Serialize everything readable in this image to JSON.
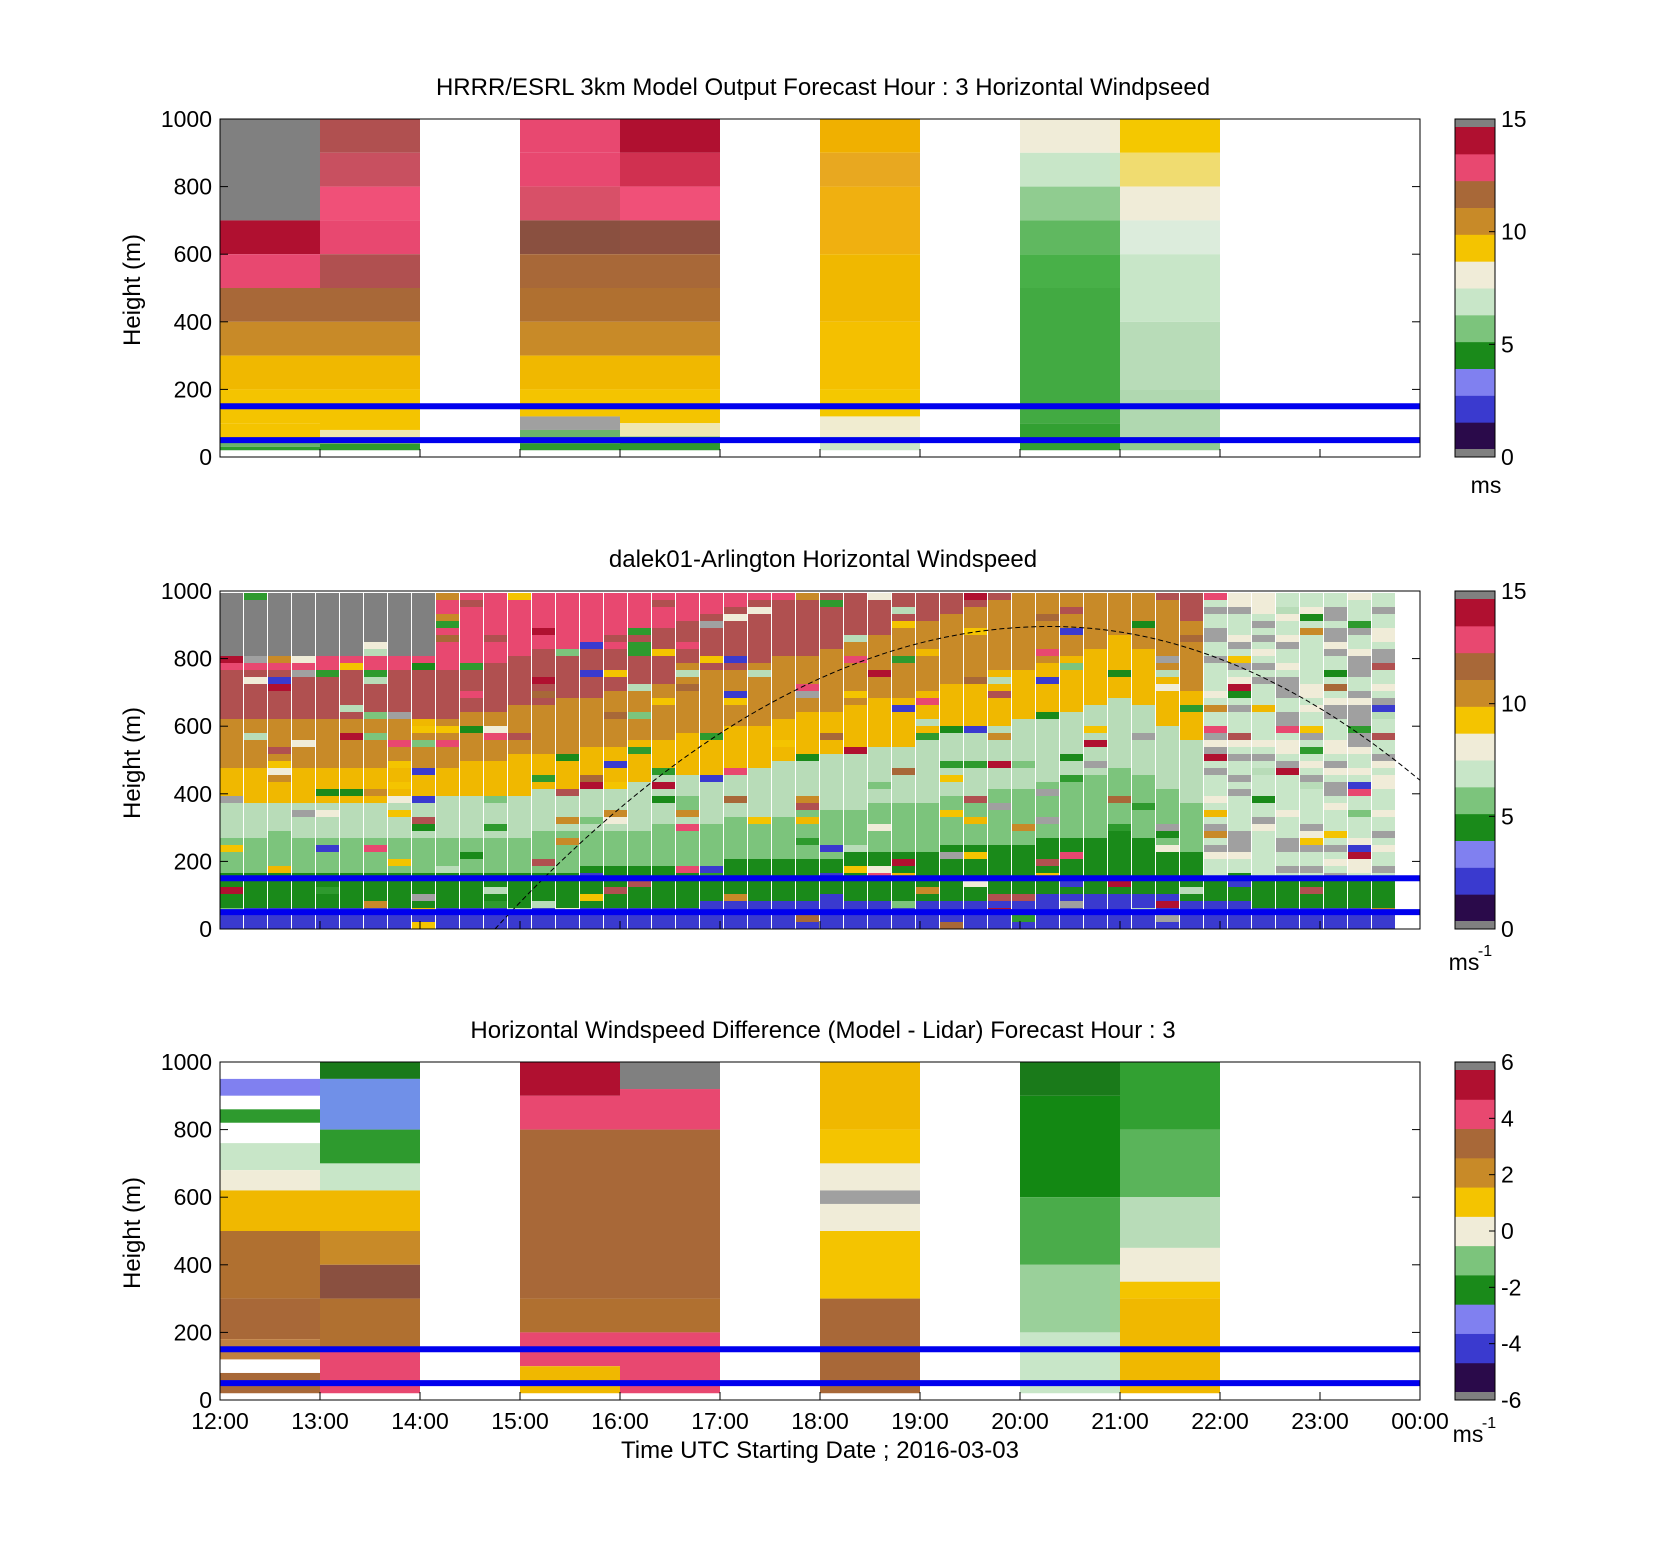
{
  "figure": {
    "xlabel": "Time UTC  Starting Date ; 2016-03-03",
    "x_ticks": [
      "12:00",
      "13:00",
      "14:00",
      "15:00",
      "16:00",
      "17:00",
      "18:00",
      "19:00",
      "20:00",
      "21:00",
      "22:00",
      "23:00",
      "00:00"
    ]
  },
  "chart_data": [
    {
      "type": "heatmap",
      "title": "HRRR/ESRL 3km Model Output   Forecast Hour : 3 Horizontal Windpseed",
      "ylabel": "Height (m)",
      "ylim": [
        0,
        1000
      ],
      "y_ticks": [
        "0",
        "200",
        "400",
        "600",
        "800",
        "1000"
      ],
      "colorbar": {
        "min": 0,
        "max": 15,
        "ticks": [
          "0",
          "5",
          "10",
          "15"
        ],
        "unit": "ms",
        "unit_sup": ""
      },
      "reference_lines_m": [
        150,
        50
      ],
      "columns": [
        {
          "time": "12:00-13:00",
          "segments": [
            [
              750,
              1000,
              "#808080"
            ],
            [
              700,
              750,
              "#808080"
            ],
            [
              600,
              700,
              "#b01030"
            ],
            [
              500,
              600,
              "#e84870"
            ],
            [
              400,
              500,
              "#a86838"
            ],
            [
              300,
              400,
              "#c88a28"
            ],
            [
              200,
              300,
              "#f0b800"
            ],
            [
              100,
              200,
              "#f4c400"
            ],
            [
              50,
              100,
              "#f4c400"
            ],
            [
              30,
              50,
              "#6ab36a"
            ],
            [
              20,
              30,
              "#2e9a2e"
            ]
          ]
        },
        {
          "time": "13:00-14:00",
          "segments": [
            [
              900,
              1000,
              "#b05050"
            ],
            [
              800,
              900,
              "#c85060"
            ],
            [
              700,
              800,
              "#f05078"
            ],
            [
              600,
              700,
              "#e84870"
            ],
            [
              500,
              600,
              "#b05050"
            ],
            [
              400,
              500,
              "#a86838"
            ],
            [
              300,
              400,
              "#c88a28"
            ],
            [
              200,
              300,
              "#f0b800"
            ],
            [
              80,
              200,
              "#f4c400"
            ],
            [
              40,
              80,
              "#efe6b0"
            ],
            [
              20,
              40,
              "#2e9a2e"
            ]
          ]
        },
        {
          "time": "15:00-16:00",
          "segments": [
            [
              900,
              1000,
              "#e84870"
            ],
            [
              800,
              900,
              "#e84870"
            ],
            [
              700,
              800,
              "#d85068"
            ],
            [
              600,
              700,
              "#8a5040"
            ],
            [
              500,
              600,
              "#a86838"
            ],
            [
              400,
              500,
              "#b07030"
            ],
            [
              300,
              400,
              "#c88a28"
            ],
            [
              200,
              300,
              "#f0b800"
            ],
            [
              120,
              200,
              "#f4c400"
            ],
            [
              80,
              120,
              "#a0a0a0"
            ],
            [
              40,
              80,
              "#6ab36a"
            ],
            [
              20,
              40,
              "#2e9a2e"
            ]
          ]
        },
        {
          "time": "16:00-17:00",
          "segments": [
            [
              900,
              1000,
              "#b01030"
            ],
            [
              800,
              900,
              "#d03050"
            ],
            [
              700,
              800,
              "#f05078"
            ],
            [
              600,
              700,
              "#905040"
            ],
            [
              500,
              600,
              "#a86838"
            ],
            [
              400,
              500,
              "#b07030"
            ],
            [
              300,
              400,
              "#c88a28"
            ],
            [
              200,
              300,
              "#f0b800"
            ],
            [
              100,
              200,
              "#f4c400"
            ],
            [
              60,
              100,
              "#efe6b0"
            ],
            [
              20,
              60,
              "#2e9a2e"
            ]
          ]
        },
        {
          "time": "18:00-19:00",
          "segments": [
            [
              900,
              1000,
              "#f0b000"
            ],
            [
              800,
              900,
              "#e8a820"
            ],
            [
              600,
              800,
              "#f0b010"
            ],
            [
              400,
              600,
              "#f0b800"
            ],
            [
              200,
              400,
              "#f4c000"
            ],
            [
              120,
              200,
              "#f4c800"
            ],
            [
              60,
              120,
              "#f0ecd0"
            ],
            [
              20,
              60,
              "#c8e6c8"
            ]
          ]
        },
        {
          "time": "20:00-21:00",
          "segments": [
            [
              900,
              1000,
              "#f0ecd8"
            ],
            [
              800,
              900,
              "#c8e6c8"
            ],
            [
              700,
              800,
              "#90cc90"
            ],
            [
              600,
              700,
              "#60b860"
            ],
            [
              500,
              600,
              "#48b048"
            ],
            [
              100,
              500,
              "#42aa42"
            ],
            [
              20,
              100,
              "#32a032"
            ]
          ]
        },
        {
          "time": "21:00-22:00",
          "segments": [
            [
              900,
              1000,
              "#f4c800"
            ],
            [
              800,
              900,
              "#f0dc70"
            ],
            [
              700,
              800,
              "#f0ecd8"
            ],
            [
              600,
              700,
              "#dcecdc"
            ],
            [
              400,
              600,
              "#c8e6c8"
            ],
            [
              200,
              400,
              "#b8dcb8"
            ],
            [
              60,
              200,
              "#b0d8b0"
            ],
            [
              20,
              60,
              "#90cc90"
            ]
          ]
        }
      ]
    },
    {
      "type": "heatmap",
      "title": "dalek01-Arlington  Horizontal Windspeed",
      "ylabel": "Height (m)",
      "ylim": [
        0,
        1000
      ],
      "y_ticks": [
        "0",
        "200",
        "400",
        "600",
        "800",
        "1000"
      ],
      "colorbar": {
        "min": 0,
        "max": 15,
        "ticks": [
          "0",
          "5",
          "10",
          "15"
        ],
        "unit": "ms",
        "unit_sup": "-1"
      },
      "reference_lines_m": [
        150,
        50
      ],
      "boundary_layer_curve": {
        "start_hour": 14.75,
        "peak_hour": 20.3,
        "peak_height_m": 895,
        "end_height_m": 440
      },
      "profile_bands": [
        [
          0,
          60,
          "#3a3acf"
        ],
        [
          60,
          160,
          "#1a8a1a"
        ],
        [
          160,
          260,
          "#7cc47c"
        ],
        [
          260,
          380,
          "#b8dcb8"
        ],
        [
          380,
          480,
          "#f0b800"
        ],
        [
          480,
          620,
          "#c88a28"
        ],
        [
          620,
          760,
          "#b05050"
        ],
        [
          760,
          1000,
          "#e84870"
        ]
      ]
    },
    {
      "type": "heatmap",
      "title": "Horizontal Windspeed Difference (Model - Lidar) Forecast Hour : 3",
      "ylabel": "Height (m)",
      "ylim": [
        0,
        1000
      ],
      "y_ticks": [
        "0",
        "200",
        "400",
        "600",
        "800",
        "1000"
      ],
      "colorbar": {
        "min": -6,
        "max": 6,
        "ticks": [
          "-6",
          "-4",
          "-2",
          "0",
          "2",
          "4",
          "6"
        ],
        "unit": "ms",
        "unit_sup": "-1"
      },
      "reference_lines_m": [
        150,
        50
      ],
      "columns": [
        {
          "time": "12:00-13:00",
          "segments": [
            [
              950,
              1000,
              "#ffffff"
            ],
            [
              900,
              950,
              "#8080f0"
            ],
            [
              860,
              900,
              "#ffffff"
            ],
            [
              820,
              860,
              "#2e9a2e"
            ],
            [
              760,
              820,
              "#ffffff"
            ],
            [
              680,
              760,
              "#c8e6c8"
            ],
            [
              620,
              680,
              "#f0ecd8"
            ],
            [
              500,
              620,
              "#f0b800"
            ],
            [
              300,
              500,
              "#b07030"
            ],
            [
              180,
              300,
              "#a86838"
            ],
            [
              120,
              180,
              "#c08040"
            ],
            [
              80,
              120,
              "#ffffff"
            ],
            [
              20,
              80,
              "#a86838"
            ]
          ]
        },
        {
          "time": "13:00-14:00",
          "segments": [
            [
              950,
              1000,
              "#1a7a1a"
            ],
            [
              800,
              950,
              "#7090e8"
            ],
            [
              700,
              800,
              "#2e9a2e"
            ],
            [
              620,
              700,
              "#c8e6c8"
            ],
            [
              500,
              620,
              "#f0b800"
            ],
            [
              400,
              500,
              "#c88a28"
            ],
            [
              300,
              400,
              "#8a5040"
            ],
            [
              150,
              300,
              "#b07030"
            ],
            [
              20,
              150,
              "#e84870"
            ]
          ]
        },
        {
          "time": "15:00-16:00",
          "segments": [
            [
              900,
              1000,
              "#b01030"
            ],
            [
              800,
              900,
              "#e84870"
            ],
            [
              300,
              800,
              "#a86838"
            ],
            [
              200,
              300,
              "#b07030"
            ],
            [
              100,
              200,
              "#e84870"
            ],
            [
              20,
              100,
              "#f0b800"
            ]
          ]
        },
        {
          "time": "16:00-17:00",
          "segments": [
            [
              920,
              1000,
              "#808080"
            ],
            [
              800,
              920,
              "#e84870"
            ],
            [
              300,
              800,
              "#a86838"
            ],
            [
              200,
              300,
              "#b07030"
            ],
            [
              20,
              200,
              "#e84870"
            ]
          ]
        },
        {
          "time": "18:00-19:00",
          "segments": [
            [
              800,
              1000,
              "#f0b800"
            ],
            [
              700,
              800,
              "#f4c400"
            ],
            [
              620,
              700,
              "#f0ecd8"
            ],
            [
              580,
              620,
              "#a0a0a0"
            ],
            [
              500,
              580,
              "#f0ecd8"
            ],
            [
              300,
              500,
              "#f4c400"
            ],
            [
              20,
              300,
              "#a86838"
            ]
          ]
        },
        {
          "time": "20:00-21:00",
          "segments": [
            [
              900,
              1000,
              "#1a7a1a"
            ],
            [
              600,
              900,
              "#138813"
            ],
            [
              400,
              600,
              "#4aac4a"
            ],
            [
              200,
              400,
              "#9ad09a"
            ],
            [
              20,
              200,
              "#c8e6c8"
            ]
          ]
        },
        {
          "time": "21:00-22:00",
          "segments": [
            [
              800,
              1000,
              "#32a032"
            ],
            [
              600,
              800,
              "#5ab45a"
            ],
            [
              450,
              600,
              "#b8dcb8"
            ],
            [
              350,
              450,
              "#f0ecd8"
            ],
            [
              300,
              350,
              "#f4c400"
            ],
            [
              20,
              300,
              "#f0b800"
            ]
          ]
        }
      ]
    }
  ]
}
